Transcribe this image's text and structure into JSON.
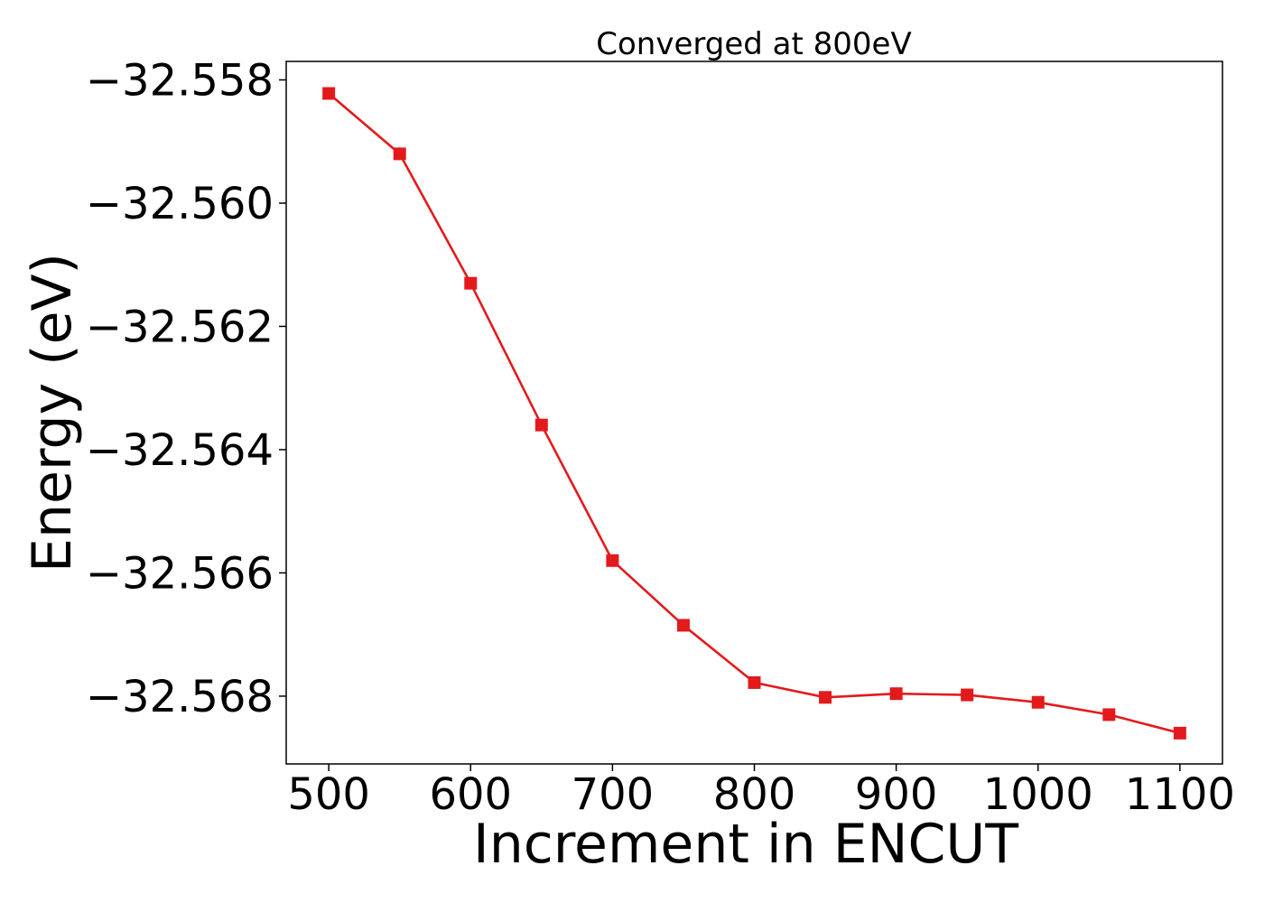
{
  "chart_data": {
    "type": "line",
    "title": "Converged at 800eV",
    "xlabel": "Increment in ENCUT",
    "ylabel": "Energy (eV)",
    "x": [
      500,
      550,
      600,
      650,
      700,
      750,
      800,
      850,
      900,
      950,
      1000,
      1050,
      1100
    ],
    "series": [
      {
        "values": [
          -32.55822,
          -32.5592,
          -32.5613,
          -32.5636,
          -32.5658,
          -32.56685,
          -32.56778,
          -32.56802,
          -32.56796,
          -32.56798,
          -32.5681,
          -32.5683,
          -32.5686
        ],
        "color": "#e31a1c",
        "marker": "square"
      }
    ],
    "xlim": [
      470,
      1130
    ],
    "ylim": [
      -32.5691,
      -32.5577
    ],
    "xticks": [
      500,
      600,
      700,
      800,
      900,
      1000,
      1100
    ],
    "xtick_labels": [
      "500",
      "600",
      "700",
      "800",
      "900",
      "1000",
      "1100"
    ],
    "yticks": [
      -32.558,
      -32.56,
      -32.562,
      -32.564,
      -32.566,
      -32.568
    ],
    "ytick_labels": [
      "−32.558",
      "−32.560",
      "−32.562",
      "−32.564",
      "−32.566",
      "−32.568"
    ],
    "grid": false,
    "legend": false
  }
}
